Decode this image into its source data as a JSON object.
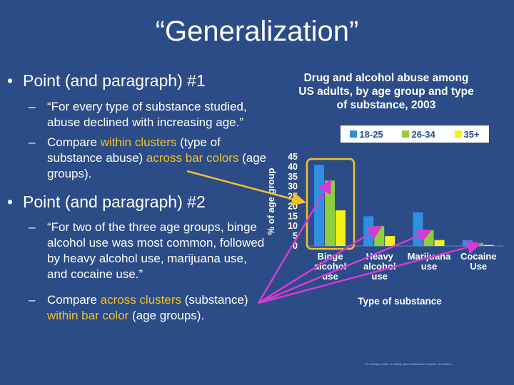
{
  "slide": {
    "title": "“Generalization”",
    "point1": {
      "bullet": "•",
      "heading": "Point (and paragraph) #1",
      "sub1": "“For every type of substance studied, abuse declined with increasing age.”",
      "sub2_prefix": "Compare ",
      "sub2_hl1": "within clusters",
      "sub2_mid": " (type of substance abuse) ",
      "sub2_hl2": "across bar colors",
      "sub2_suffix": " (age groups)."
    },
    "point2": {
      "bullet": "•",
      "heading": "Point (and paragraph) #2",
      "sub1": "“For two of the three age groups, binge alcohol use was most common, followed by heavy alcohol use, marijuana use, and cocaine use.”",
      "sub2_prefix": "Compare ",
      "sub2_hl1": "across clusters",
      "sub2_mid": " (substance) ",
      "sub2_hl2": "within bar color",
      "sub2_suffix": " (age groups)."
    },
    "dash": "–",
    "footnote": "The Chicago Guide to Writing about Multivariate Analysis, 2nd edition"
  },
  "colors": {
    "background": "#2b4c86",
    "highlight": "#f2c12e",
    "arrow_yellow": "#f2c12e",
    "arrow_magenta": "#d63ad6"
  },
  "chart_data": {
    "type": "bar",
    "title_lines": [
      "Drug and alcohol abuse among",
      "US adults, by age group and type",
      "of substance, 2003"
    ],
    "xlabel": "Type of substance",
    "ylabel": "% of age group",
    "ylim": [
      0,
      45
    ],
    "yticks": [
      0,
      5,
      10,
      15,
      20,
      25,
      30,
      35,
      40,
      45
    ],
    "categories": [
      [
        "Binge",
        "alcohol",
        "use"
      ],
      [
        "Heavy",
        "alcohol",
        "use"
      ],
      [
        "Marijuana",
        "use"
      ],
      [
        "Cocaine",
        "Use"
      ]
    ],
    "series": [
      {
        "name": "18-25",
        "color": "#2f8fe0",
        "values": [
          41,
          15,
          17,
          3
        ]
      },
      {
        "name": "26-34",
        "color": "#8fce3a",
        "values": [
          33,
          10,
          8,
          1.5
        ]
      },
      {
        "name": "35+",
        "color": "#f4f21a",
        "values": [
          18,
          5,
          3,
          0.5
        ]
      }
    ],
    "legend_position": "top",
    "grid": false
  }
}
